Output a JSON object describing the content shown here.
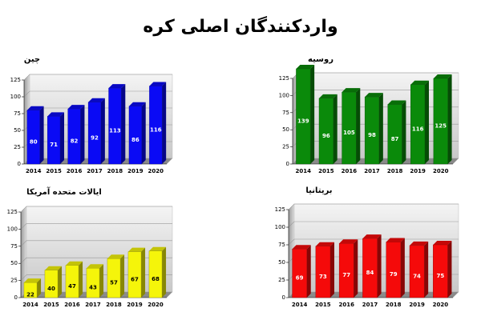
{
  "title": "واردکنندگان اصلی کره",
  "chart_data": [
    {
      "type": "bar3d",
      "title": "چین",
      "categories": [
        "2014",
        "2015",
        "2016",
        "2017",
        "2018",
        "2019",
        "2020"
      ],
      "values": [
        80,
        71,
        82,
        92,
        113,
        86,
        116
      ],
      "color": "#0a0af5",
      "label_color": "#ffffff",
      "ylim": [
        0,
        125
      ],
      "yticks": [
        0,
        25,
        50,
        75,
        100,
        125
      ],
      "grid": true
    },
    {
      "type": "bar3d",
      "title": "روسیه",
      "categories": [
        "2014",
        "2015",
        "2016",
        "2017",
        "2018",
        "2019",
        "2020"
      ],
      "values": [
        139,
        96,
        105,
        98,
        87,
        116,
        125
      ],
      "color": "#0a8a0a",
      "label_color": "#ffffff",
      "ylim": [
        0,
        125
      ],
      "yticks": [
        0,
        25,
        50,
        75,
        100,
        125
      ],
      "grid": true
    },
    {
      "type": "bar3d",
      "title": "ایالات متحده آمریکا",
      "categories": [
        "2014",
        "2015",
        "2016",
        "2017",
        "2018",
        "2019",
        "2020"
      ],
      "values": [
        22,
        40,
        47,
        43,
        57,
        67,
        68
      ],
      "color": "#f5f50a",
      "label_color": "#000000",
      "ylim": [
        0,
        125
      ],
      "yticks": [
        0,
        25,
        50,
        75,
        100,
        125
      ],
      "grid": true
    },
    {
      "type": "bar3d",
      "title": "بریتانیا",
      "categories": [
        "2014",
        "2015",
        "2016",
        "2017",
        "2018",
        "2019",
        "2020"
      ],
      "values": [
        69,
        73,
        77,
        84,
        79,
        74,
        75
      ],
      "color": "#f50a0a",
      "label_color": "#ffffff",
      "ylim": [
        0,
        125
      ],
      "yticks": [
        0,
        25,
        50,
        75,
        100,
        125
      ],
      "grid": true
    }
  ]
}
